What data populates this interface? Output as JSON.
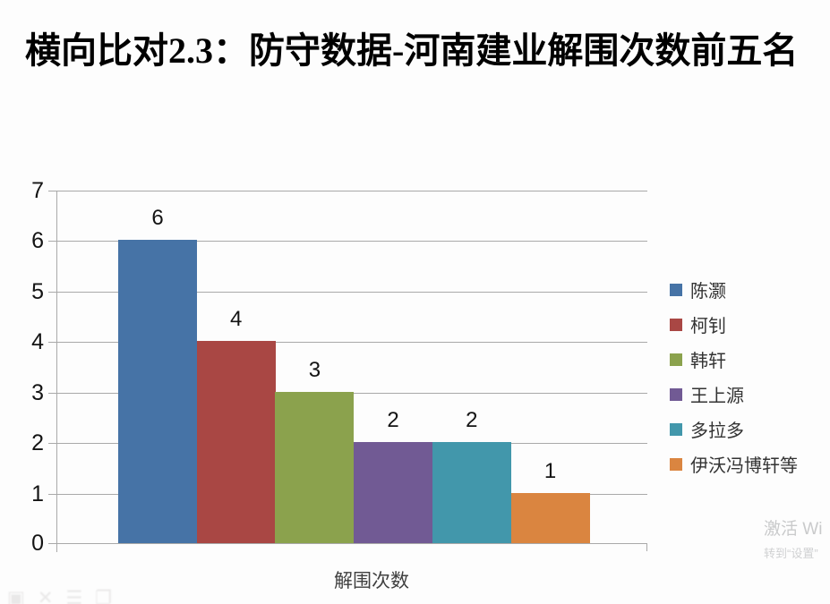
{
  "slide": {
    "title": "横向比对2.3：防守数据-河南建业解围次数前五名"
  },
  "chart_data": {
    "type": "bar",
    "title": "横向比对2.3：防守数据-河南建业解围次数前五名",
    "xlabel": "解围次数",
    "ylabel": "",
    "ylim": [
      0,
      7
    ],
    "yticks": [
      0,
      1,
      2,
      3,
      4,
      5,
      6,
      7
    ],
    "grid": true,
    "legend_position": "right",
    "series": [
      {
        "name": "陈灏",
        "value": 6,
        "color": "#4673a6"
      },
      {
        "name": "柯钊",
        "value": 4,
        "color": "#a94744"
      },
      {
        "name": "韩轩",
        "value": 3,
        "color": "#8ba24d"
      },
      {
        "name": "王上源",
        "value": 2,
        "color": "#715a94"
      },
      {
        "name": "多拉多",
        "value": 2,
        "color": "#4297ab"
      },
      {
        "name": "伊沃冯博轩等",
        "value": 1,
        "color": "#da8540"
      }
    ],
    "data_labels": [
      6,
      4,
      3,
      2,
      2,
      1
    ]
  },
  "watermark": {
    "line1": "激活 Wi",
    "line2": "转到“设置”"
  },
  "ghost_icons": [
    "slide-thumb-icon",
    "close-icon",
    "menu-lines-icon",
    "window-icon"
  ]
}
